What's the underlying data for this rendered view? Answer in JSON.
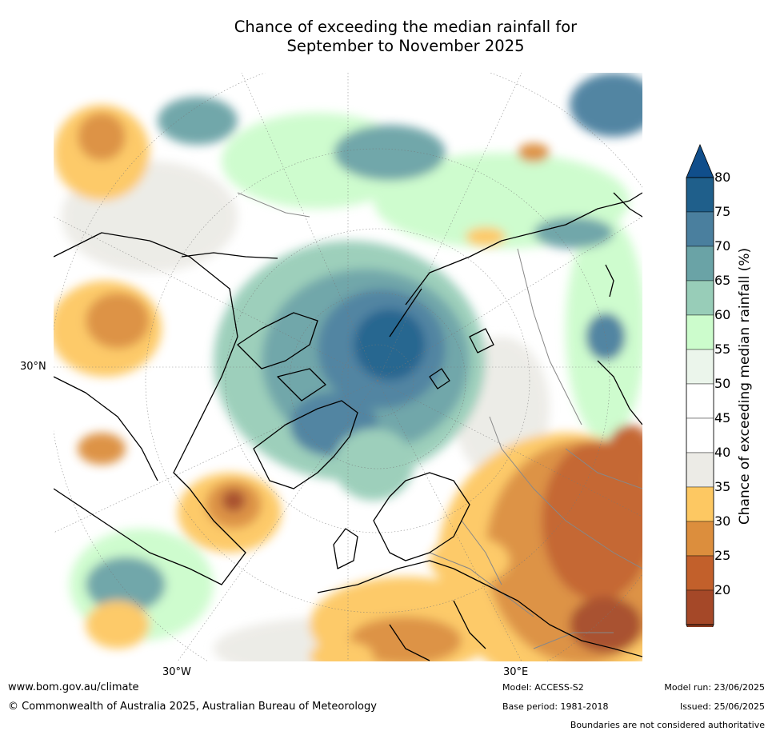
{
  "title_line1": "Chance of exceeding the median rainfall for",
  "title_line2": "September to November 2025",
  "map": {
    "lat_label": "30°N",
    "lon_label_west": "30°W",
    "lon_label_east": "30°E",
    "projection": "north-polar-stereographic",
    "ocean_color": "#ffffff",
    "coastline_color": "#000000",
    "border_color": "#888888"
  },
  "colorbar": {
    "title": "Chance of exceeding median rainfall (%)",
    "tick_labels": [
      "80",
      "75",
      "70",
      "65",
      "60",
      "55",
      "50",
      "45",
      "40",
      "35",
      "30",
      "25",
      "20"
    ],
    "bands": [
      {
        "range": "75-80",
        "color": "#1f5f8b"
      },
      {
        "range": "70-75",
        "color": "#4a7f9e"
      },
      {
        "range": "65-70",
        "color": "#6aa3a6"
      },
      {
        "range": "60-65",
        "color": "#98cdb8"
      },
      {
        "range": "55-60",
        "color": "#ccfccc"
      },
      {
        "range": "50-55",
        "color": "#ebf5eb"
      },
      {
        "range": "45-50",
        "color": "#ffffff"
      },
      {
        "range": "40-45",
        "color": "#ffffff"
      },
      {
        "range": "35-40",
        "color": "#ecebe6"
      },
      {
        "range": "30-35",
        "color": "#fdc862"
      },
      {
        "range": "25-30",
        "color": "#dc8e3d"
      },
      {
        "range": "20-25",
        "color": "#c2602b"
      },
      {
        "range": "<20",
        "color": "#a54828"
      }
    ],
    "over_color": "#104e8b",
    "under_color": "#8b3a1f"
  },
  "footer": {
    "url": "www.bom.gov.au/climate",
    "copyright": "© Commonwealth of Australia 2025, Australian Bureau of Meteorology",
    "model": "Model: ACCESS-S2",
    "base_period": "Base period: 1981-2018",
    "model_run": "Model run: 23/06/2025",
    "issued": "Issued: 25/06/2025",
    "boundaries": "Boundaries are not considered authoritative"
  }
}
